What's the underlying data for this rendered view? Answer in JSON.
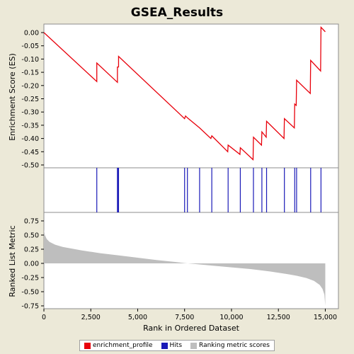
{
  "chart_data": {
    "type": "line",
    "title": "GSEA_Results",
    "colors": {
      "background": "#ece9d8",
      "plot_bg": "#ffffff",
      "enrichment_profile": "#e8000b",
      "hits": "#1a1ab8",
      "ranking": "#bebebe"
    },
    "top_panel": {
      "ylabel": "Enrichment Score (ES)",
      "ylim": [
        -0.5,
        0.05
      ],
      "yticks": [
        0.0,
        -0.05,
        -0.1,
        -0.15,
        -0.2,
        -0.25,
        -0.3,
        -0.35,
        -0.4,
        -0.45,
        -0.5
      ],
      "ytick_labels": [
        "0.00",
        "-0.05",
        "-0.10",
        "-0.15",
        "-0.20",
        "-0.25",
        "-0.30",
        "-0.35",
        "-0.40",
        "-0.45",
        "-0.50"
      ],
      "profile_x": [
        0,
        2820,
        2820,
        3920,
        3920,
        3980,
        3980,
        7500,
        7550,
        7650,
        8300,
        8900,
        8950,
        9800,
        9820,
        10450,
        10470,
        11150,
        11170,
        11600,
        11620,
        11850,
        11870,
        12800,
        12820,
        13350,
        13370,
        13450,
        13470,
        14200,
        14220,
        14750,
        14770,
        15000
      ],
      "profile_y": [
        0.0,
        -0.185,
        -0.115,
        -0.188,
        -0.13,
        -0.13,
        -0.09,
        -0.325,
        -0.315,
        -0.322,
        -0.36,
        -0.4,
        -0.39,
        -0.45,
        -0.425,
        -0.46,
        -0.435,
        -0.48,
        -0.395,
        -0.425,
        -0.375,
        -0.395,
        -0.335,
        -0.4,
        -0.325,
        -0.36,
        -0.27,
        -0.275,
        -0.18,
        -0.23,
        -0.105,
        -0.145,
        0.02,
        0.003
      ]
    },
    "hits_panel": {
      "hit_positions": [
        2820,
        3920,
        3950,
        3980,
        7500,
        7650,
        8300,
        8950,
        9820,
        10470,
        11170,
        11620,
        11870,
        12820,
        13370,
        13470,
        14220,
        14770
      ]
    },
    "bottom_panel": {
      "ylabel": "Ranked List Metric",
      "ylim": [
        -0.8,
        0.9
      ],
      "yticks": [
        0.75,
        0.5,
        0.25,
        0.0,
        -0.25,
        -0.5,
        -0.75
      ],
      "ytick_labels": [
        "0.75",
        "0.50",
        "0.25",
        "0.00",
        "-0.25",
        "-0.50",
        "-0.75"
      ],
      "ranking_x": [
        0,
        50,
        150,
        300,
        600,
        1000,
        2000,
        3000,
        4000,
        5000,
        6000,
        7000,
        7500,
        8000,
        9000,
        10000,
        11000,
        12000,
        13000,
        13500,
        14000,
        14400,
        14700,
        14850,
        14950,
        15000
      ],
      "ranking_y": [
        0.6,
        0.5,
        0.43,
        0.38,
        0.33,
        0.29,
        0.23,
        0.18,
        0.14,
        0.1,
        0.06,
        0.025,
        0.005,
        -0.01,
        -0.04,
        -0.07,
        -0.1,
        -0.14,
        -0.19,
        -0.22,
        -0.26,
        -0.31,
        -0.38,
        -0.45,
        -0.55,
        -0.75
      ]
    },
    "xlabel": "Rank in Ordered Dataset",
    "xlim": [
      0,
      15700
    ],
    "xticks": [
      0,
      2500,
      5000,
      7500,
      10000,
      12500,
      15000
    ],
    "xtick_labels": [
      "0",
      "2,500",
      "5,000",
      "7,500",
      "10,000",
      "12,500",
      "15,000"
    ],
    "legend": {
      "placement": "bottom-center",
      "items": [
        {
          "label": "enrichment_profile",
          "color": "#e8000b"
        },
        {
          "label": "Hits",
          "color": "#1a1ab8"
        },
        {
          "label": "Ranking metric scores",
          "color": "#bebebe"
        }
      ]
    }
  }
}
